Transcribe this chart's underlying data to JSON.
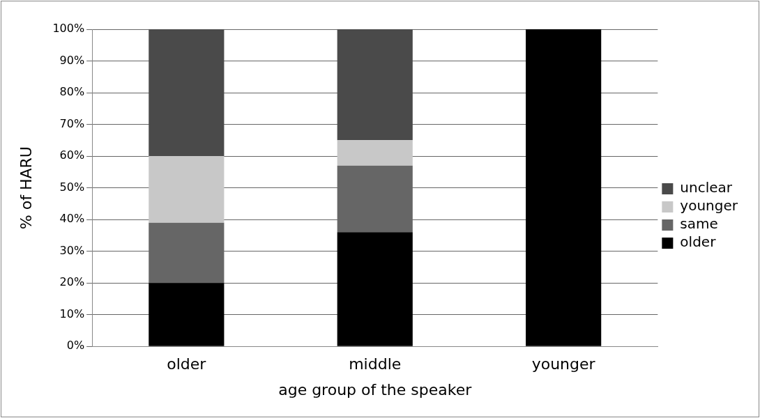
{
  "chart_data": {
    "type": "bar",
    "stacked": true,
    "xlabel": "age group of the speaker",
    "ylabel": "% of HARU",
    "categories": [
      "older",
      "middle",
      "younger"
    ],
    "series": [
      {
        "name": "older",
        "color": "#000000",
        "values": [
          20,
          36,
          100
        ]
      },
      {
        "name": "same",
        "color": "#666666",
        "values": [
          19,
          21,
          0
        ]
      },
      {
        "name": "younger",
        "color": "#c8c8c8",
        "values": [
          21,
          8,
          0
        ]
      },
      {
        "name": "unclear",
        "color": "#4a4a4a",
        "values": [
          40,
          35,
          0
        ]
      }
    ],
    "ylim": [
      0,
      100
    ],
    "yticks": [
      {
        "value": 0,
        "label": "0%"
      },
      {
        "value": 10,
        "label": "10%"
      },
      {
        "value": 20,
        "label": "20%"
      },
      {
        "value": 30,
        "label": "30%"
      },
      {
        "value": 40,
        "label": "40%"
      },
      {
        "value": 50,
        "label": "50%"
      },
      {
        "value": 60,
        "label": "60%"
      },
      {
        "value": 70,
        "label": "70%"
      },
      {
        "value": 80,
        "label": "80%"
      },
      {
        "value": 90,
        "label": "90%"
      },
      {
        "value": 100,
        "label": "100%"
      }
    ],
    "grid": "y",
    "legend": "right"
  }
}
